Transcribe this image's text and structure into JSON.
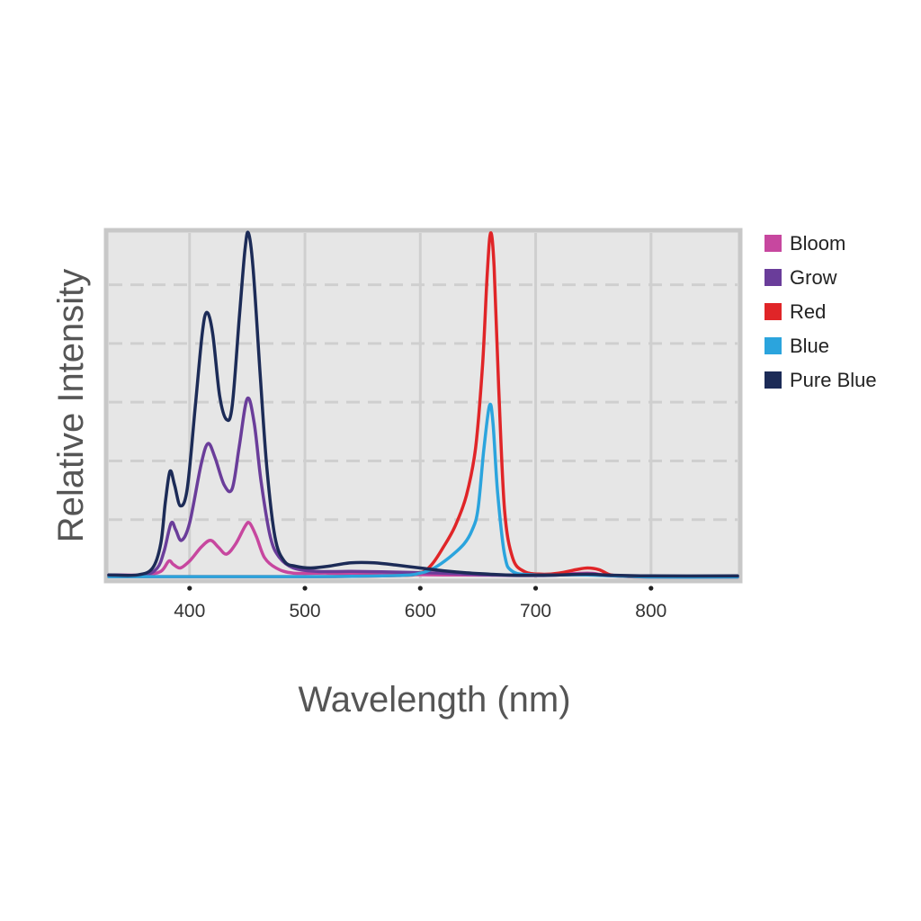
{
  "chart_data": {
    "type": "line",
    "title": "",
    "xlabel": "Wavelength (nm)",
    "ylabel": "Relative Intensity",
    "xlim": [
      330,
      875
    ],
    "ylim": [
      0,
      1
    ],
    "x_ticks": [
      400,
      500,
      600,
      700,
      800
    ],
    "y_ticks": [
      0.17,
      0.34,
      0.51,
      0.68,
      0.85
    ],
    "grid": true,
    "legend_position": "right",
    "series": [
      {
        "name": "Bloom",
        "color": "#c7479f",
        "points": [
          [
            330,
            0.01
          ],
          [
            360,
            0.01
          ],
          [
            375,
            0.02
          ],
          [
            382,
            0.05
          ],
          [
            386,
            0.04
          ],
          [
            392,
            0.03
          ],
          [
            400,
            0.05
          ],
          [
            410,
            0.09
          ],
          [
            418,
            0.11
          ],
          [
            425,
            0.09
          ],
          [
            432,
            0.07
          ],
          [
            440,
            0.1
          ],
          [
            448,
            0.15
          ],
          [
            452,
            0.16
          ],
          [
            458,
            0.12
          ],
          [
            465,
            0.06
          ],
          [
            475,
            0.03
          ],
          [
            490,
            0.015
          ],
          [
            520,
            0.015
          ],
          [
            560,
            0.012
          ],
          [
            620,
            0.01
          ],
          [
            700,
            0.01
          ],
          [
            745,
            0.015
          ],
          [
            760,
            0.01
          ],
          [
            800,
            0.005
          ],
          [
            875,
            0.005
          ]
        ]
      },
      {
        "name": "Grow",
        "color": "#6a3d9a",
        "points": [
          [
            330,
            0.01
          ],
          [
            360,
            0.01
          ],
          [
            372,
            0.03
          ],
          [
            378,
            0.08
          ],
          [
            384,
            0.16
          ],
          [
            388,
            0.14
          ],
          [
            393,
            0.11
          ],
          [
            400,
            0.16
          ],
          [
            410,
            0.33
          ],
          [
            416,
            0.39
          ],
          [
            422,
            0.35
          ],
          [
            430,
            0.27
          ],
          [
            437,
            0.26
          ],
          [
            443,
            0.38
          ],
          [
            450,
            0.52
          ],
          [
            456,
            0.45
          ],
          [
            462,
            0.28
          ],
          [
            470,
            0.12
          ],
          [
            478,
            0.06
          ],
          [
            490,
            0.03
          ],
          [
            510,
            0.02
          ],
          [
            540,
            0.02
          ],
          [
            580,
            0.018
          ],
          [
            620,
            0.015
          ],
          [
            660,
            0.01
          ],
          [
            700,
            0.008
          ],
          [
            745,
            0.012
          ],
          [
            760,
            0.008
          ],
          [
            800,
            0.004
          ],
          [
            875,
            0.004
          ]
        ]
      },
      {
        "name": "Red",
        "color": "#e02528",
        "points": [
          [
            330,
            0.005
          ],
          [
            400,
            0.005
          ],
          [
            500,
            0.005
          ],
          [
            580,
            0.008
          ],
          [
            600,
            0.015
          ],
          [
            610,
            0.04
          ],
          [
            620,
            0.09
          ],
          [
            630,
            0.15
          ],
          [
            640,
            0.24
          ],
          [
            648,
            0.38
          ],
          [
            654,
            0.62
          ],
          [
            658,
            0.88
          ],
          [
            661,
            1.0
          ],
          [
            664,
            0.9
          ],
          [
            668,
            0.55
          ],
          [
            673,
            0.2
          ],
          [
            680,
            0.06
          ],
          [
            690,
            0.02
          ],
          [
            705,
            0.012
          ],
          [
            720,
            0.015
          ],
          [
            735,
            0.025
          ],
          [
            745,
            0.03
          ],
          [
            755,
            0.025
          ],
          [
            765,
            0.01
          ],
          [
            780,
            0.005
          ],
          [
            800,
            0.004
          ],
          [
            875,
            0.004
          ]
        ]
      },
      {
        "name": "Blue",
        "color": "#2ba4dd",
        "points": [
          [
            330,
            0.005
          ],
          [
            400,
            0.005
          ],
          [
            500,
            0.005
          ],
          [
            580,
            0.008
          ],
          [
            600,
            0.015
          ],
          [
            612,
            0.03
          ],
          [
            625,
            0.06
          ],
          [
            638,
            0.1
          ],
          [
            645,
            0.14
          ],
          [
            650,
            0.2
          ],
          [
            655,
            0.37
          ],
          [
            660,
            0.5
          ],
          [
            663,
            0.45
          ],
          [
            667,
            0.25
          ],
          [
            673,
            0.07
          ],
          [
            680,
            0.02
          ],
          [
            700,
            0.01
          ],
          [
            745,
            0.01
          ],
          [
            800,
            0.004
          ],
          [
            875,
            0.004
          ]
        ]
      },
      {
        "name": "Pure Blue",
        "color": "#1c2b57",
        "points": [
          [
            330,
            0.01
          ],
          [
            355,
            0.01
          ],
          [
            368,
            0.03
          ],
          [
            375,
            0.1
          ],
          [
            379,
            0.22
          ],
          [
            383,
            0.31
          ],
          [
            387,
            0.27
          ],
          [
            392,
            0.21
          ],
          [
            398,
            0.26
          ],
          [
            405,
            0.5
          ],
          [
            411,
            0.71
          ],
          [
            415,
            0.77
          ],
          [
            420,
            0.71
          ],
          [
            426,
            0.53
          ],
          [
            432,
            0.46
          ],
          [
            437,
            0.5
          ],
          [
            443,
            0.75
          ],
          [
            448,
            0.95
          ],
          [
            451,
            1.0
          ],
          [
            455,
            0.9
          ],
          [
            461,
            0.6
          ],
          [
            467,
            0.32
          ],
          [
            474,
            0.12
          ],
          [
            482,
            0.05
          ],
          [
            492,
            0.035
          ],
          [
            505,
            0.03
          ],
          [
            520,
            0.035
          ],
          [
            540,
            0.045
          ],
          [
            560,
            0.045
          ],
          [
            580,
            0.038
          ],
          [
            600,
            0.03
          ],
          [
            620,
            0.022
          ],
          [
            640,
            0.016
          ],
          [
            660,
            0.012
          ],
          [
            680,
            0.009
          ],
          [
            700,
            0.009
          ],
          [
            720,
            0.01
          ],
          [
            745,
            0.012
          ],
          [
            765,
            0.009
          ],
          [
            800,
            0.007
          ],
          [
            875,
            0.007
          ]
        ]
      }
    ]
  },
  "legend": {
    "items": [
      {
        "label": "Bloom",
        "color": "#c7479f"
      },
      {
        "label": "Grow",
        "color": "#6a3d9a"
      },
      {
        "label": "Red",
        "color": "#e02528"
      },
      {
        "label": "Blue",
        "color": "#2ba4dd"
      },
      {
        "label": "Pure Blue",
        "color": "#1c2b57"
      }
    ]
  },
  "spectrum_bar": {
    "colors": [
      "#1e2a6b",
      "#1b3f8f",
      "#16609e",
      "#0d8a7a",
      "#33a845",
      "#9bc83a",
      "#f1e42a",
      "#f0a92c",
      "#e07b2c",
      "#d8322c",
      "#c41f2c",
      "#d0202e"
    ]
  }
}
